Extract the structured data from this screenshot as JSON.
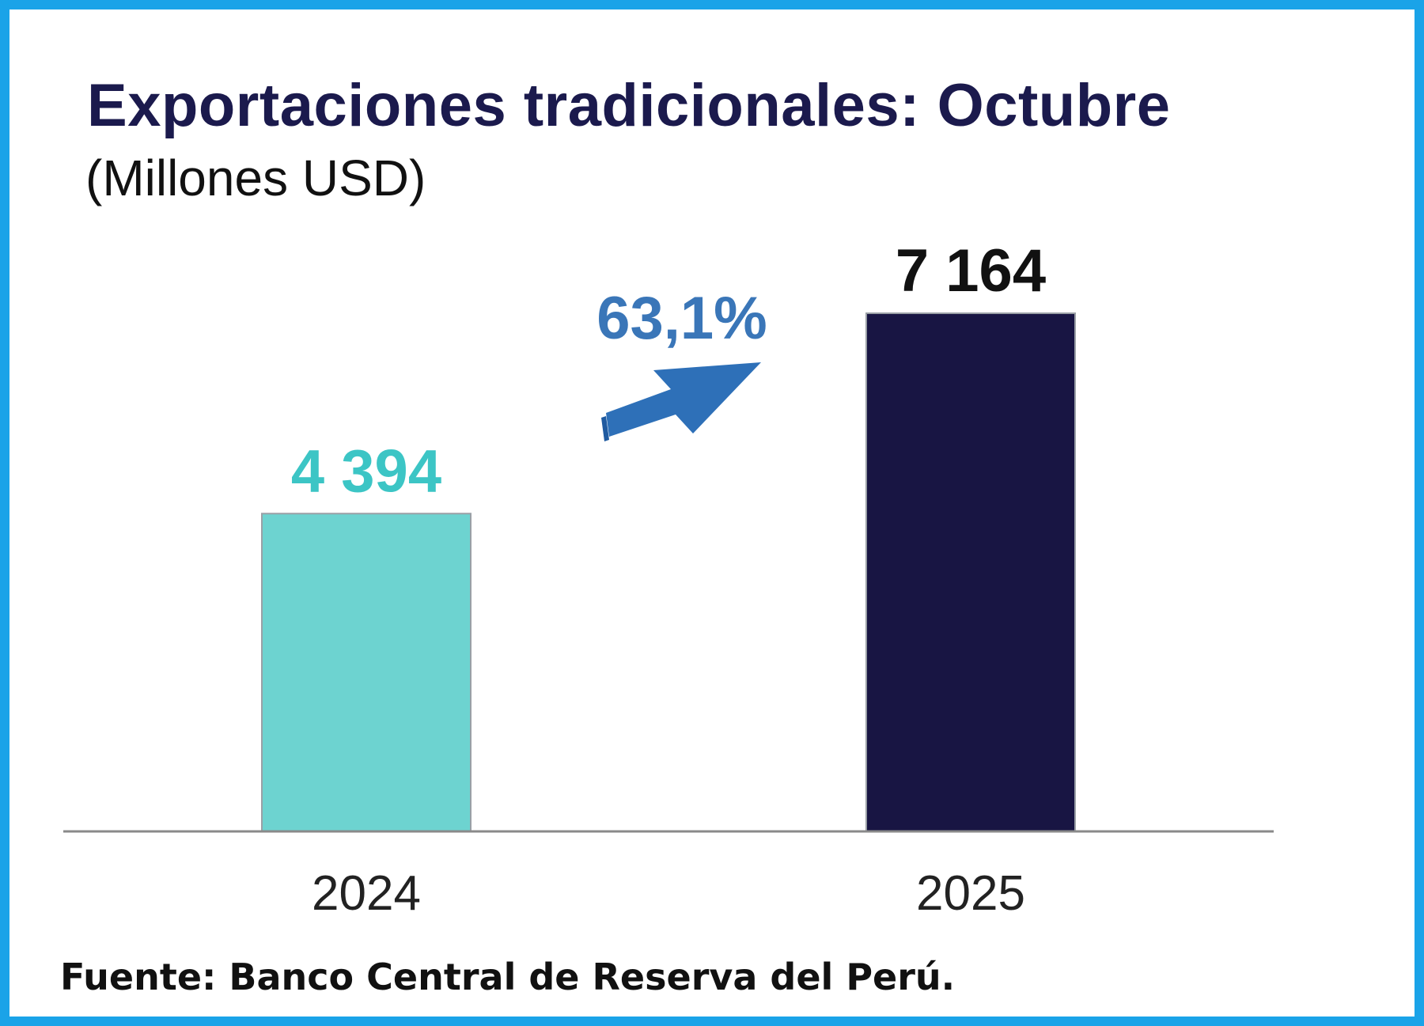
{
  "chart_data": {
    "type": "bar",
    "title": "Exportaciones tradicionales: Octubre",
    "subtitle": "(Millones USD)",
    "categories": [
      "2024",
      "2025"
    ],
    "values": [
      4394,
      7164
    ],
    "value_labels": [
      "4 394",
      "7 164"
    ],
    "colors": [
      "#6dd3d0",
      "#181543"
    ],
    "value_label_colors": [
      "#3cc5c5",
      "#111111"
    ],
    "growth_label": "63,1%",
    "growth_color": "#3a76b8",
    "xlabel": "",
    "ylabel": "",
    "ylim": [
      0,
      7164
    ],
    "grid": false,
    "legend": false
  },
  "source": "Fuente: Banco Central de Reserva del Perú."
}
